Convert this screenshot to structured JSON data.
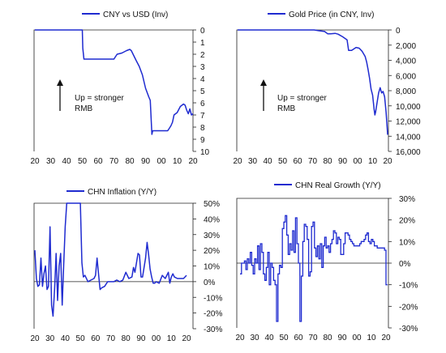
{
  "colors": {
    "series": "#1f2bd0",
    "axis": "#222222",
    "text": "#111111"
  },
  "chart_data": [
    {
      "type": "line",
      "title": "CNY vs USD (Inv)",
      "legend": {
        "label": "CNY vs USD (Inv)",
        "placement": "top"
      },
      "annotation": {
        "text_line1": "Up = stronger",
        "text_line2": "RMB",
        "arrow": "up"
      },
      "x_ticks": [
        "20",
        "30",
        "40",
        "50",
        "60",
        "70",
        "80",
        "90",
        "00",
        "10",
        "20"
      ],
      "y_ticks": [
        "0",
        "1",
        "2",
        "3",
        "4",
        "5",
        "6",
        "7",
        "8",
        "9",
        "10"
      ],
      "ylim": [
        0,
        10
      ],
      "y_inverted": true,
      "y_axis_side": "right",
      "x": [
        1920,
        1950,
        1950.3,
        1951,
        1970,
        1971,
        1972,
        1975,
        1978,
        1980,
        1981,
        1984,
        1986,
        1988,
        1990,
        1992,
        1993,
        1994,
        1994.5,
        1995,
        2000,
        2004,
        2005,
        2006,
        2007,
        2008,
        2010,
        2012,
        2014,
        2015,
        2016,
        2017,
        2018,
        2019,
        2020
      ],
      "values": [
        0.0,
        0.0,
        1.5,
        2.4,
        2.4,
        2.2,
        2.0,
        1.9,
        1.7,
        1.6,
        1.7,
        2.5,
        3.0,
        3.7,
        4.8,
        5.5,
        5.8,
        8.6,
        8.3,
        8.3,
        8.3,
        8.3,
        8.1,
        7.9,
        7.6,
        7.0,
        6.8,
        6.3,
        6.1,
        6.2,
        6.6,
        6.9,
        6.5,
        7.0,
        6.9
      ]
    },
    {
      "type": "line",
      "title": "Gold Price (in CNY, Inv)",
      "legend": {
        "label": "Gold Price (in CNY, Inv)",
        "placement": "top"
      },
      "annotation": {
        "text_line1": "Up = stronger",
        "text_line2": "RMB",
        "arrow": "up"
      },
      "x_ticks": [
        "20",
        "30",
        "40",
        "50",
        "60",
        "70",
        "80",
        "90",
        "00",
        "10",
        "20"
      ],
      "y_ticks": [
        "0",
        "2,000",
        "4,000",
        "6,000",
        "8,000",
        "10,000",
        "12,000",
        "14,000",
        "16,000"
      ],
      "ylim": [
        0,
        16000
      ],
      "y_inverted": true,
      "y_axis_side": "right",
      "x": [
        1920,
        1950,
        1971,
        1974,
        1978,
        1980,
        1982,
        1985,
        1987,
        1990,
        1993,
        1994,
        1996,
        1999,
        2001,
        2003,
        2005,
        2006,
        2007,
        2008,
        2009,
        2010,
        2011,
        2011.5,
        2012,
        2013,
        2014,
        2015,
        2016,
        2017,
        2018,
        2019,
        2019.7,
        2020
      ],
      "values": [
        0,
        0,
        0,
        100,
        200,
        500,
        500,
        450,
        550,
        900,
        1300,
        2700,
        2700,
        2300,
        2400,
        2800,
        3500,
        4200,
        5200,
        6400,
        7800,
        8600,
        10500,
        11200,
        10800,
        9500,
        8300,
        7600,
        8300,
        8100,
        8800,
        10800,
        12800,
        13800
      ]
    },
    {
      "type": "line",
      "title": "CHN Inflation (Y/Y)",
      "legend": {
        "label": "CHN Inflation (Y/Y)",
        "placement": "top"
      },
      "x_ticks": [
        "20",
        "30",
        "40",
        "50",
        "60",
        "70",
        "80",
        "90",
        "00",
        "10",
        "20"
      ],
      "y_ticks": [
        "50%",
        "40%",
        "30%",
        "20%",
        "10%",
        "0%",
        "-10%",
        "-20%",
        "-30%"
      ],
      "ylim": [
        -30,
        50
      ],
      "y_axis_side": "right",
      "zero_line": true,
      "x": [
        1920,
        1921,
        1922,
        1923,
        1924,
        1925,
        1926,
        1927,
        1928,
        1929,
        1930,
        1931,
        1932,
        1933,
        1934,
        1935,
        1936,
        1937,
        1938,
        1939,
        1940,
        1941,
        1942,
        1942.5,
        1950,
        1951,
        1952,
        1953,
        1955,
        1957,
        1959,
        1960,
        1961,
        1962,
        1963,
        1964,
        1966,
        1968,
        1970,
        1972,
        1974,
        1976,
        1978,
        1980,
        1982,
        1984,
        1985,
        1986,
        1988,
        1989,
        1990,
        1991,
        1993,
        1994,
        1995,
        1996,
        1997,
        1998,
        1999,
        2000,
        2002,
        2004,
        2006,
        2008,
        2009,
        2010,
        2011,
        2012,
        2014,
        2016,
        2018,
        2020
      ],
      "values": [
        20,
        2,
        -3,
        -2,
        15,
        -3,
        5,
        10,
        -5,
        -3,
        35,
        -15,
        -22,
        -5,
        18,
        -12,
        10,
        18,
        -15,
        10,
        35,
        50,
        50,
        50,
        50,
        12,
        3,
        4,
        0,
        1,
        2,
        4,
        15,
        5,
        -5,
        -4,
        -3,
        0,
        0,
        0,
        1,
        0,
        1,
        6,
        2,
        3,
        9,
        6,
        18,
        17,
        3,
        3,
        15,
        25,
        17,
        8,
        3,
        -1,
        -1,
        0,
        -1,
        4,
        2,
        6,
        -1,
        3,
        5,
        3,
        2,
        2,
        2,
        4
      ]
    },
    {
      "type": "bar",
      "title": "CHN Real Growth (Y/Y)",
      "legend": {
        "label": "CHN Real Growth (Y/Y)",
        "placement": "top"
      },
      "x_ticks": [
        "20",
        "30",
        "40",
        "50",
        "60",
        "70",
        "80",
        "90",
        "00",
        "10",
        "20"
      ],
      "y_ticks": [
        "30%",
        "20%",
        "10%",
        "0%",
        "-10%",
        "-20%",
        "-30%"
      ],
      "ylim": [
        -30,
        30
      ],
      "y_axis_side": "right",
      "zero_line": true,
      "x": [
        1920,
        1921,
        1922,
        1923,
        1924,
        1925,
        1926,
        1927,
        1928,
        1929,
        1930,
        1931,
        1932,
        1933,
        1934,
        1935,
        1936,
        1937,
        1938,
        1939,
        1940,
        1941,
        1942,
        1943,
        1944,
        1945,
        1946,
        1947,
        1948,
        1949,
        1950,
        1951,
        1952,
        1953,
        1954,
        1955,
        1956,
        1957,
        1958,
        1959,
        1960,
        1961,
        1962,
        1963,
        1964,
        1965,
        1966,
        1967,
        1968,
        1969,
        1970,
        1971,
        1972,
        1973,
        1974,
        1975,
        1976,
        1977,
        1978,
        1979,
        1980,
        1981,
        1982,
        1983,
        1984,
        1985,
        1986,
        1987,
        1988,
        1989,
        1990,
        1991,
        1992,
        1993,
        1994,
        1995,
        1996,
        1997,
        1998,
        1999,
        2000,
        2001,
        2002,
        2003,
        2004,
        2005,
        2006,
        2007,
        2008,
        2009,
        2010,
        2011,
        2012,
        2013,
        2014,
        2015,
        2016,
        2017,
        2018,
        2019,
        2020
      ],
      "values": [
        -5,
        0,
        0,
        1,
        -3,
        2,
        0,
        5,
        -1,
        -5,
        2,
        0,
        8,
        -3,
        9,
        5,
        -5,
        -8,
        -2,
        5,
        -10,
        0,
        -2,
        -8,
        -10,
        -27,
        -5,
        -1,
        -2,
        16,
        19,
        22,
        13,
        4,
        9,
        6,
        15,
        5,
        21,
        9,
        0,
        -27,
        -6,
        10,
        18,
        17,
        11,
        -6,
        -4,
        17,
        19,
        7,
        3,
        8,
        2,
        9,
        -2,
        8,
        12,
        7,
        8,
        5,
        9,
        11,
        15,
        14,
        9,
        12,
        11,
        4,
        4,
        9,
        14,
        14,
        13,
        11,
        10,
        9,
        8,
        8,
        8,
        8,
        9,
        10,
        10,
        11,
        13,
        14,
        10,
        9,
        11,
        10,
        8,
        8,
        7,
        7,
        7,
        7,
        7,
        6,
        -10
      ]
    }
  ]
}
